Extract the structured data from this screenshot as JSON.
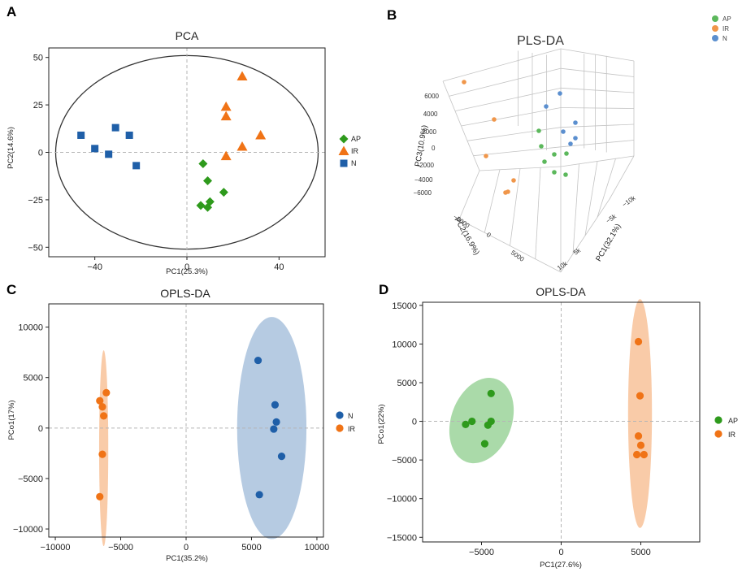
{
  "colors": {
    "AP": "#2e9a1c",
    "IR": "#f07316",
    "N": "#1f5fa8",
    "AP3": "#5cb85c",
    "IR3": "#f0964a",
    "N3": "#5b8fcf"
  },
  "chart_data": [
    {
      "panel": "A",
      "type": "scatter",
      "title": "PCA",
      "xlabel": "PC1(25.3%)",
      "ylabel": "PC2(14.6%)",
      "xlim": [
        -60,
        60
      ],
      "ylim": [
        -55,
        55
      ],
      "xticks": [
        -40,
        0,
        40
      ],
      "yticks": [
        50,
        25,
        0,
        -25,
        -50
      ],
      "ellipse": {
        "cx": 0,
        "cy": 0,
        "rx": 57,
        "ry": 51
      },
      "series": [
        {
          "name": "AP",
          "marker": "diamond",
          "points": [
            [
              7,
              -6
            ],
            [
              9,
              -15
            ],
            [
              6,
              -28
            ],
            [
              9,
              -29
            ],
            [
              10,
              -26
            ],
            [
              16,
              -21
            ]
          ]
        },
        {
          "name": "IR",
          "marker": "triangle",
          "points": [
            [
              24,
              40
            ],
            [
              17,
              24
            ],
            [
              17,
              19
            ],
            [
              32,
              9
            ],
            [
              24,
              3
            ],
            [
              17,
              -2
            ]
          ]
        },
        {
          "name": "N",
          "marker": "square",
          "points": [
            [
              -46,
              9
            ],
            [
              -40,
              2
            ],
            [
              -31,
              13
            ],
            [
              -25,
              9
            ],
            [
              -34,
              -1
            ],
            [
              -22,
              -7
            ]
          ]
        }
      ],
      "legend": [
        "AP",
        "IR",
        "N"
      ]
    },
    {
      "panel": "B",
      "type": "scatter",
      "title": "PLS-DA",
      "xlabel": "PC1(32.1%)",
      "ylabel": "PC2(16.9%)",
      "zlabel": "PC3(10.9%)",
      "zticks": [
        "6000",
        "4000",
        "2000",
        "0",
        "-2000",
        "-4000",
        "-6000"
      ],
      "yticks": [
        "-5000",
        "0",
        "5000"
      ],
      "xticks": [
        "-10k",
        "-5k",
        "5k",
        "10k"
      ],
      "series": [
        {
          "name": "AP",
          "points": [
            [
              663,
              161
            ],
            [
              666,
              180
            ],
            [
              682,
              190
            ],
            [
              697,
              189
            ],
            [
              670,
              199
            ],
            [
              682,
              212
            ],
            [
              696,
              215
            ]
          ]
        },
        {
          "name": "IR",
          "points": [
            [
              571,
              101
            ],
            [
              608,
              147
            ],
            [
              598,
              192
            ],
            [
              632,
              222
            ],
            [
              625,
              236
            ],
            [
              622,
              237
            ]
          ]
        },
        {
          "name": "N",
          "points": [
            [
              689,
              115
            ],
            [
              672,
              131
            ],
            [
              708,
              151
            ],
            [
              693,
              162
            ],
            [
              708,
              170
            ],
            [
              702,
              177
            ]
          ]
        }
      ],
      "legend": [
        "AP",
        "IR",
        "N"
      ]
    },
    {
      "panel": "C",
      "type": "scatter",
      "title": "OPLS-DA",
      "xlabel": "PC1(35.2%)",
      "ylabel": "PCo1(17%)",
      "xlim": [
        -10500,
        10500
      ],
      "ylim": [
        -10800,
        12300
      ],
      "xticks": [
        -10000,
        -5000,
        0,
        5000,
        10000
      ],
      "yticks": [
        10000,
        5000,
        0,
        -5000,
        -10000
      ],
      "ellipses": [
        {
          "group": "IR",
          "cx": -6300,
          "cy": -2000,
          "rx": 350,
          "ry": 9700
        },
        {
          "group": "N",
          "cx": 6550,
          "cy": 0,
          "rx": 2650,
          "ry": 11000
        }
      ],
      "series": [
        {
          "name": "N",
          "points": [
            [
              5500,
              6700
            ],
            [
              6800,
              2300
            ],
            [
              6900,
              600
            ],
            [
              6700,
              -100
            ],
            [
              7300,
              -2800
            ],
            [
              5600,
              -6600
            ]
          ]
        },
        {
          "name": "IR",
          "points": [
            [
              -6100,
              3500
            ],
            [
              -6600,
              2700
            ],
            [
              -6400,
              2100
            ],
            [
              -6300,
              1200
            ],
            [
              -6400,
              -2600
            ],
            [
              -6600,
              -6800
            ]
          ]
        }
      ],
      "legend": [
        "N",
        "IR"
      ]
    },
    {
      "panel": "D",
      "type": "scatter",
      "title": "OPLS-DA",
      "xlabel": "PC1(27.6%)",
      "ylabel": "PCo1(22%)",
      "xlim": [
        -8700,
        8700
      ],
      "ylim": [
        -15600,
        15400
      ],
      "xticks": [
        -5000,
        0,
        5000
      ],
      "yticks": [
        15000,
        10000,
        5000,
        0,
        -5000,
        -10000,
        -15000
      ],
      "ellipses": [
        {
          "group": "AP",
          "cx": -5000,
          "cy": 100,
          "rx": 1900,
          "ry": 5700,
          "rotate": 20
        },
        {
          "group": "IR",
          "cx": 4950,
          "cy": 1000,
          "rx": 750,
          "ry": 14800
        }
      ],
      "series": [
        {
          "name": "AP",
          "points": [
            [
              -4400,
              3600
            ],
            [
              -5600,
              0
            ],
            [
              -4400,
              0
            ],
            [
              -6000,
              -400
            ],
            [
              -4600,
              -500
            ],
            [
              -4800,
              -2900
            ]
          ]
        },
        {
          "name": "IR",
          "points": [
            [
              4850,
              10300
            ],
            [
              4950,
              3300
            ],
            [
              4850,
              -1900
            ],
            [
              5000,
              -3100
            ],
            [
              4750,
              -4300
            ],
            [
              5200,
              -4300
            ]
          ]
        }
      ],
      "legend": [
        "AP",
        "IR"
      ]
    }
  ],
  "panels": [
    "A",
    "B",
    "C",
    "D"
  ]
}
